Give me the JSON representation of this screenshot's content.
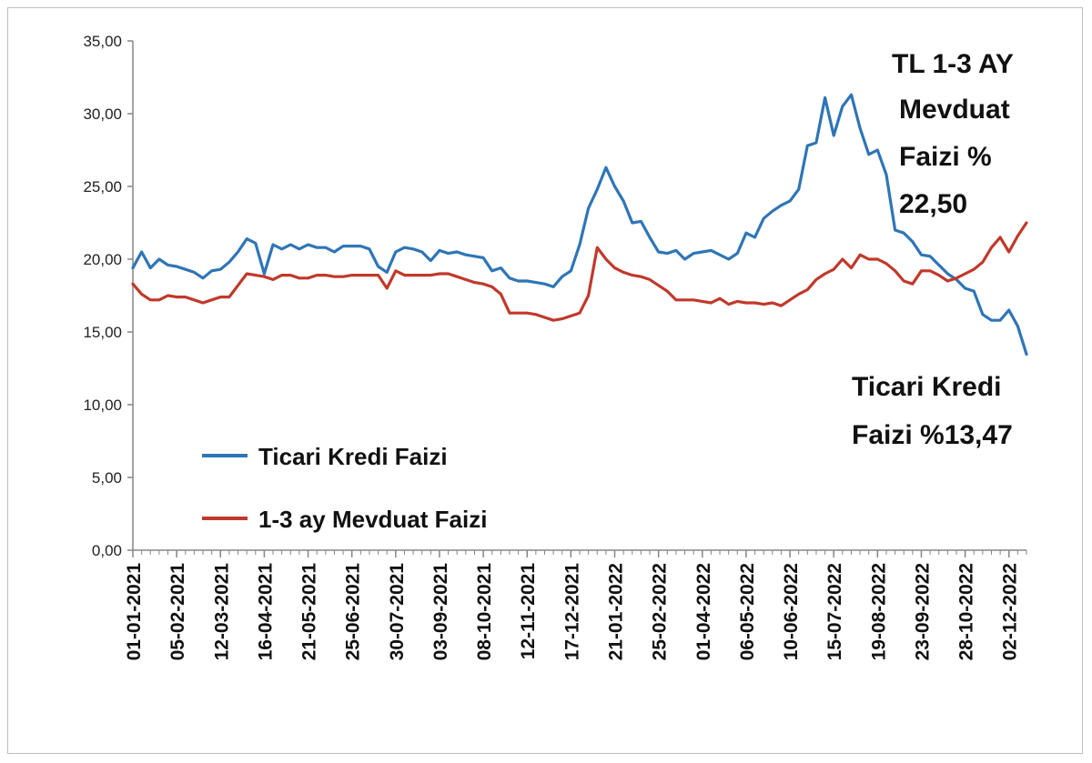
{
  "chart_data": {
    "type": "line",
    "title": "",
    "xlabel": "",
    "ylabel": "",
    "ylim": [
      0,
      35
    ],
    "yticks": [
      "0,00",
      "5,00",
      "10,00",
      "15,00",
      "20,00",
      "25,00",
      "30,00",
      "35,00"
    ],
    "x_tick_labels": [
      "01-01-2021",
      "05-02-2021",
      "12-03-2021",
      "16-04-2021",
      "21-05-2021",
      "25-06-2021",
      "30-07-2021",
      "03-09-2021",
      "08-10-2021",
      "12-11-2021",
      "17-12-2021",
      "21-01-2022",
      "25-02-2022",
      "01-04-2022",
      "06-05-2022",
      "10-06-2022",
      "15-07-2022",
      "19-08-2022",
      "23-09-2022",
      "28-10-2022",
      "02-12-2022"
    ],
    "x_range": [
      "01-01-2021",
      "16-12-2022"
    ],
    "grid": false,
    "legend_position": "lower-left",
    "colors": {
      "ticari": "#2e75b6",
      "mevduat": "#c0392b"
    },
    "series": [
      {
        "name": "Ticari Kredi Faizi",
        "key": "ticari",
        "values": [
          [
            "01-01-2021",
            19.4
          ],
          [
            "08-01-2021",
            20.5
          ],
          [
            "15-01-2021",
            19.4
          ],
          [
            "22-01-2021",
            20.0
          ],
          [
            "29-01-2021",
            19.6
          ],
          [
            "05-02-2021",
            19.5
          ],
          [
            "12-02-2021",
            19.3
          ],
          [
            "19-02-2021",
            19.1
          ],
          [
            "26-02-2021",
            18.7
          ],
          [
            "05-03-2021",
            19.2
          ],
          [
            "12-03-2021",
            19.3
          ],
          [
            "19-03-2021",
            19.8
          ],
          [
            "26-03-2021",
            20.5
          ],
          [
            "02-04-2021",
            21.4
          ],
          [
            "09-04-2021",
            21.1
          ],
          [
            "16-04-2021",
            19.0
          ],
          [
            "23-04-2021",
            21.0
          ],
          [
            "30-04-2021",
            20.7
          ],
          [
            "07-05-2021",
            21.0
          ],
          [
            "14-05-2021",
            20.7
          ],
          [
            "21-05-2021",
            21.0
          ],
          [
            "28-05-2021",
            20.8
          ],
          [
            "04-06-2021",
            20.8
          ],
          [
            "11-06-2021",
            20.5
          ],
          [
            "18-06-2021",
            20.9
          ],
          [
            "25-06-2021",
            20.9
          ],
          [
            "02-07-2021",
            20.9
          ],
          [
            "09-07-2021",
            20.7
          ],
          [
            "16-07-2021",
            19.5
          ],
          [
            "23-07-2021",
            19.1
          ],
          [
            "30-07-2021",
            20.5
          ],
          [
            "06-08-2021",
            20.8
          ],
          [
            "13-08-2021",
            20.7
          ],
          [
            "20-08-2021",
            20.5
          ],
          [
            "27-08-2021",
            19.9
          ],
          [
            "03-09-2021",
            20.6
          ],
          [
            "10-09-2021",
            20.4
          ],
          [
            "17-09-2021",
            20.5
          ],
          [
            "24-09-2021",
            20.3
          ],
          [
            "01-10-2021",
            20.2
          ],
          [
            "08-10-2021",
            20.1
          ],
          [
            "15-10-2021",
            19.2
          ],
          [
            "22-10-2021",
            19.4
          ],
          [
            "29-10-2021",
            18.7
          ],
          [
            "05-11-2021",
            18.5
          ],
          [
            "12-11-2021",
            18.5
          ],
          [
            "19-11-2021",
            18.4
          ],
          [
            "26-11-2021",
            18.3
          ],
          [
            "03-12-2021",
            18.1
          ],
          [
            "10-12-2021",
            18.8
          ],
          [
            "17-12-2021",
            19.2
          ],
          [
            "24-12-2021",
            21.0
          ],
          [
            "31-12-2021",
            23.5
          ],
          [
            "07-01-2022",
            24.8
          ],
          [
            "14-01-2022",
            26.3
          ],
          [
            "21-01-2022",
            25.0
          ],
          [
            "28-01-2022",
            24.0
          ],
          [
            "04-02-2022",
            22.5
          ],
          [
            "11-02-2022",
            22.6
          ],
          [
            "18-02-2022",
            21.5
          ],
          [
            "25-02-2022",
            20.5
          ],
          [
            "04-03-2022",
            20.4
          ],
          [
            "11-03-2022",
            20.6
          ],
          [
            "18-03-2022",
            20.0
          ],
          [
            "25-03-2022",
            20.4
          ],
          [
            "01-04-2022",
            20.5
          ],
          [
            "08-04-2022",
            20.6
          ],
          [
            "15-04-2022",
            20.3
          ],
          [
            "22-04-2022",
            20.0
          ],
          [
            "29-04-2022",
            20.4
          ],
          [
            "06-05-2022",
            21.8
          ],
          [
            "13-05-2022",
            21.5
          ],
          [
            "20-05-2022",
            22.8
          ],
          [
            "27-05-2022",
            23.3
          ],
          [
            "03-06-2022",
            23.7
          ],
          [
            "10-06-2022",
            24.0
          ],
          [
            "17-06-2022",
            24.8
          ],
          [
            "24-06-2022",
            27.8
          ],
          [
            "01-07-2022",
            28.0
          ],
          [
            "08-07-2022",
            31.1
          ],
          [
            "15-07-2022",
            28.5
          ],
          [
            "22-07-2022",
            30.5
          ],
          [
            "29-07-2022",
            31.3
          ],
          [
            "05-08-2022",
            29.0
          ],
          [
            "12-08-2022",
            27.2
          ],
          [
            "19-08-2022",
            27.5
          ],
          [
            "26-08-2022",
            25.8
          ],
          [
            "02-09-2022",
            22.0
          ],
          [
            "09-09-2022",
            21.8
          ],
          [
            "16-09-2022",
            21.2
          ],
          [
            "23-09-2022",
            20.3
          ],
          [
            "30-09-2022",
            20.2
          ],
          [
            "07-10-2022",
            19.6
          ],
          [
            "14-10-2022",
            19.0
          ],
          [
            "21-10-2022",
            18.6
          ],
          [
            "28-10-2022",
            18.0
          ],
          [
            "04-11-2022",
            17.8
          ],
          [
            "11-11-2022",
            16.2
          ],
          [
            "18-11-2022",
            15.8
          ],
          [
            "25-11-2022",
            15.8
          ],
          [
            "02-12-2022",
            16.5
          ],
          [
            "09-12-2022",
            15.4
          ],
          [
            "16-12-2022",
            13.47
          ]
        ]
      },
      {
        "name": "1-3 ay Mevduat Faizi",
        "key": "mevduat",
        "values": [
          [
            "01-01-2021",
            18.3
          ],
          [
            "08-01-2021",
            17.6
          ],
          [
            "15-01-2021",
            17.2
          ],
          [
            "22-01-2021",
            17.2
          ],
          [
            "29-01-2021",
            17.5
          ],
          [
            "05-02-2021",
            17.4
          ],
          [
            "12-02-2021",
            17.4
          ],
          [
            "19-02-2021",
            17.2
          ],
          [
            "26-02-2021",
            17.0
          ],
          [
            "05-03-2021",
            17.2
          ],
          [
            "12-03-2021",
            17.4
          ],
          [
            "19-03-2021",
            17.4
          ],
          [
            "26-03-2021",
            18.2
          ],
          [
            "02-04-2021",
            19.0
          ],
          [
            "09-04-2021",
            18.9
          ],
          [
            "16-04-2021",
            18.8
          ],
          [
            "23-04-2021",
            18.6
          ],
          [
            "30-04-2021",
            18.9
          ],
          [
            "07-05-2021",
            18.9
          ],
          [
            "14-05-2021",
            18.7
          ],
          [
            "21-05-2021",
            18.7
          ],
          [
            "28-05-2021",
            18.9
          ],
          [
            "04-06-2021",
            18.9
          ],
          [
            "11-06-2021",
            18.8
          ],
          [
            "18-06-2021",
            18.8
          ],
          [
            "25-06-2021",
            18.9
          ],
          [
            "02-07-2021",
            18.9
          ],
          [
            "09-07-2021",
            18.9
          ],
          [
            "16-07-2021",
            18.9
          ],
          [
            "23-07-2021",
            18.0
          ],
          [
            "30-07-2021",
            19.2
          ],
          [
            "06-08-2021",
            18.9
          ],
          [
            "13-08-2021",
            18.9
          ],
          [
            "20-08-2021",
            18.9
          ],
          [
            "27-08-2021",
            18.9
          ],
          [
            "03-09-2021",
            19.0
          ],
          [
            "10-09-2021",
            19.0
          ],
          [
            "17-09-2021",
            18.8
          ],
          [
            "24-09-2021",
            18.6
          ],
          [
            "01-10-2021",
            18.4
          ],
          [
            "08-10-2021",
            18.3
          ],
          [
            "15-10-2021",
            18.1
          ],
          [
            "22-10-2021",
            17.6
          ],
          [
            "29-10-2021",
            16.3
          ],
          [
            "05-11-2021",
            16.3
          ],
          [
            "12-11-2021",
            16.3
          ],
          [
            "19-11-2021",
            16.2
          ],
          [
            "26-11-2021",
            16.0
          ],
          [
            "03-12-2021",
            15.8
          ],
          [
            "10-12-2021",
            15.9
          ],
          [
            "17-12-2021",
            16.1
          ],
          [
            "24-12-2021",
            16.3
          ],
          [
            "31-12-2021",
            17.5
          ],
          [
            "07-01-2022",
            20.8
          ],
          [
            "14-01-2022",
            20.0
          ],
          [
            "21-01-2022",
            19.4
          ],
          [
            "28-01-2022",
            19.1
          ],
          [
            "04-02-2022",
            18.9
          ],
          [
            "11-02-2022",
            18.8
          ],
          [
            "18-02-2022",
            18.6
          ],
          [
            "25-02-2022",
            18.2
          ],
          [
            "04-03-2022",
            17.8
          ],
          [
            "11-03-2022",
            17.2
          ],
          [
            "18-03-2022",
            17.2
          ],
          [
            "25-03-2022",
            17.2
          ],
          [
            "01-04-2022",
            17.1
          ],
          [
            "08-04-2022",
            17.0
          ],
          [
            "15-04-2022",
            17.3
          ],
          [
            "22-04-2022",
            16.9
          ],
          [
            "29-04-2022",
            17.1
          ],
          [
            "06-05-2022",
            17.0
          ],
          [
            "13-05-2022",
            17.0
          ],
          [
            "20-05-2022",
            16.9
          ],
          [
            "27-05-2022",
            17.0
          ],
          [
            "03-06-2022",
            16.8
          ],
          [
            "10-06-2022",
            17.2
          ],
          [
            "17-06-2022",
            17.6
          ],
          [
            "24-06-2022",
            17.9
          ],
          [
            "01-07-2022",
            18.6
          ],
          [
            "08-07-2022",
            19.0
          ],
          [
            "15-07-2022",
            19.3
          ],
          [
            "22-07-2022",
            20.0
          ],
          [
            "29-07-2022",
            19.4
          ],
          [
            "05-08-2022",
            20.3
          ],
          [
            "12-08-2022",
            20.0
          ],
          [
            "19-08-2022",
            20.0
          ],
          [
            "26-08-2022",
            19.7
          ],
          [
            "02-09-2022",
            19.2
          ],
          [
            "09-09-2022",
            18.5
          ],
          [
            "16-09-2022",
            18.3
          ],
          [
            "23-09-2022",
            19.2
          ],
          [
            "30-09-2022",
            19.2
          ],
          [
            "07-10-2022",
            18.9
          ],
          [
            "14-10-2022",
            18.5
          ],
          [
            "21-10-2022",
            18.7
          ],
          [
            "28-10-2022",
            19.0
          ],
          [
            "04-11-2022",
            19.3
          ],
          [
            "11-11-2022",
            19.8
          ],
          [
            "18-11-2022",
            20.8
          ],
          [
            "25-11-2022",
            21.5
          ],
          [
            "02-12-2022",
            20.5
          ],
          [
            "09-12-2022",
            21.6
          ],
          [
            "16-12-2022",
            22.5
          ]
        ]
      }
    ],
    "annotations": [
      {
        "key": "mevduat_note",
        "lines": [
          "TL 1-3 AY",
          "Mevduat",
          "Faizi %",
          "22,50"
        ]
      },
      {
        "key": "ticari_note",
        "lines": [
          "Ticari Kredi",
          "Faizi %13,47"
        ]
      }
    ]
  }
}
